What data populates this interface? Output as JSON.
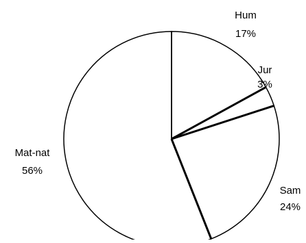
{
  "chart_data": {
    "type": "pie",
    "title": "",
    "categories": [
      "Hum",
      "Jur",
      "Sam",
      "Mat-nat"
    ],
    "values": [
      17,
      3,
      24,
      56
    ],
    "labels": [
      "17%",
      "3%",
      "24%",
      "56%"
    ],
    "start_angle_deg": 0,
    "direction": "clockwise",
    "slice_fill": "#ffffff",
    "slice_stroke": "#000000",
    "legend": "none"
  }
}
